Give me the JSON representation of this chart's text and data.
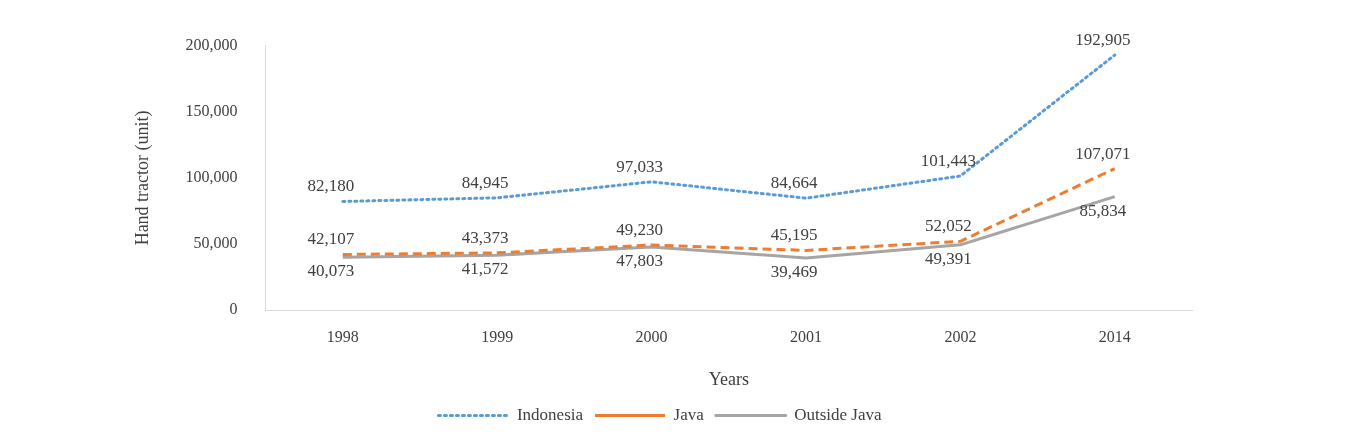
{
  "chart_data": {
    "type": "line",
    "xlabel": "Years",
    "ylabel": "Hand tractor (unit)",
    "categories": [
      "1998",
      "1999",
      "2000",
      "2001",
      "2002",
      "2014"
    ],
    "series": [
      {
        "name": "Indonesia",
        "color": "#5b9bd5",
        "line_style": "dotted",
        "values": [
          82180,
          84945,
          97033,
          84664,
          101443,
          192905
        ],
        "value_labels": [
          "82,180",
          "84,945",
          "97,033",
          "84,664",
          "101,443",
          "192,905"
        ]
      },
      {
        "name": "Java",
        "color": "#ed7d31",
        "line_style": "dashed",
        "values": [
          42107,
          43373,
          49230,
          45195,
          52052,
          107071
        ],
        "value_labels": [
          "42,107",
          "43,373",
          "49,230",
          "45,195",
          "52,052",
          "107,071"
        ]
      },
      {
        "name": "Outside Java",
        "color": "#a5a5a5",
        "line_style": "solid",
        "values": [
          40073,
          41572,
          47803,
          39469,
          49391,
          85834
        ],
        "value_labels": [
          "40,073",
          "41,572",
          "47,803",
          "39,469",
          "49,391",
          "85,834"
        ]
      }
    ],
    "ylim": [
      0,
      200000
    ],
    "yticks": [
      {
        "value": 0,
        "label": "0"
      },
      {
        "value": 50000,
        "label": "50,000"
      },
      {
        "value": 100000,
        "label": "100,000"
      },
      {
        "value": 150000,
        "label": "150,000"
      },
      {
        "value": 200000,
        "label": "200,000"
      }
    ],
    "grid": false,
    "legend": "bottom",
    "marker": "none"
  }
}
